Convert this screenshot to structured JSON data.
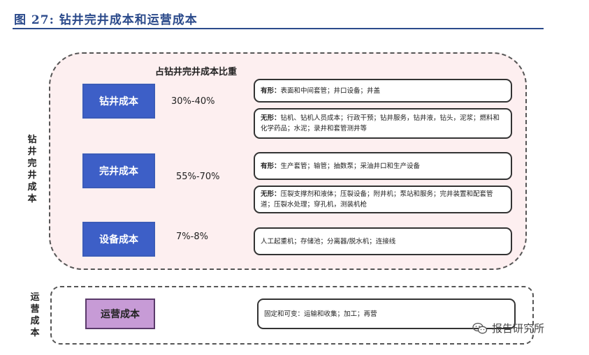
{
  "title": "图 27: 钻井完井成本和运营成本",
  "drilling_region": {
    "side_label": "钻井完井成本",
    "ratio_header": "占钻井完井成本比重",
    "categories": [
      {
        "name": "钻井成本",
        "ratio": "30%-40%"
      },
      {
        "name": "完井成本",
        "ratio": "55%-70%"
      },
      {
        "name": "设备成本",
        "ratio": "7%-8%"
      }
    ],
    "details": [
      {
        "label": "有形：",
        "text": "表面和中间套管；井口设备；井盖"
      },
      {
        "label": "无形：",
        "text": "钻机、钻机人员成本；行政干预；钻井服务，钻井液，钻头，泥浆；燃料和化学药品；水泥；录井和套管测井等"
      },
      {
        "label": "有形：",
        "text": "生产套管；输管；抽数泵；采油井口和生产设备"
      },
      {
        "label": "无形：",
        "text": "压裂支撑剂和液体；压裂设备；附井机；泵站和服务；完井装置和配套管道；压裂水处理；穿孔机，测装机枪"
      },
      {
        "label": "",
        "text": "人工起重机；存储池；分离器/脱水机；连接线"
      }
    ]
  },
  "operations_region": {
    "side_label": "运营成本",
    "category": {
      "name": "运营成本"
    },
    "detail": {
      "text": "固定和可变：运输和收集；加工；再营"
    }
  },
  "watermark": {
    "text": "报告研究所",
    "icon": "wechat-icon"
  }
}
